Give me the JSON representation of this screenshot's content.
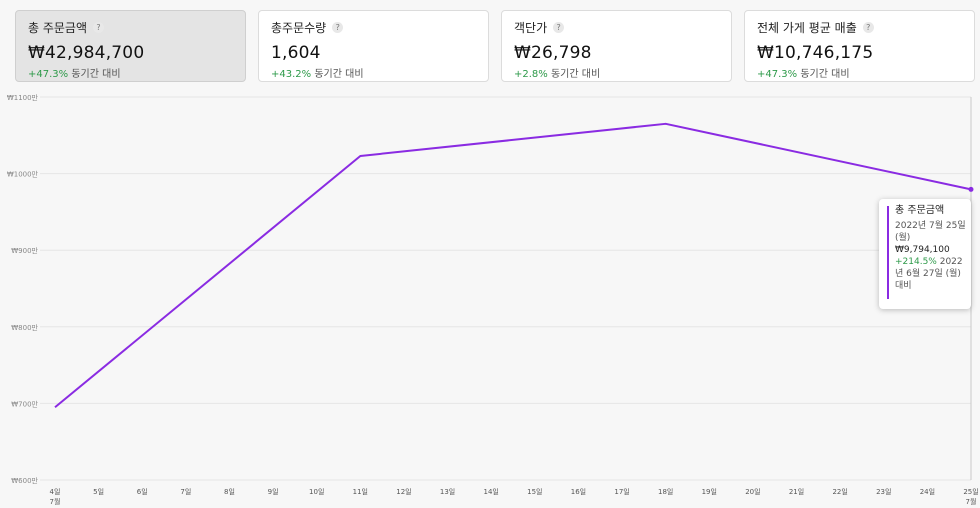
{
  "cards": [
    {
      "title": "총 주문금액",
      "value": "₩42,984,700",
      "change": "+47.3%",
      "change_suffix": "동기간 대비",
      "active": true
    },
    {
      "title": "총주문수량",
      "value": "1,604",
      "change": "+43.2%",
      "change_suffix": "동기간 대비",
      "active": false
    },
    {
      "title": "객단가",
      "value": "₩26,798",
      "change": "+2.8%",
      "change_suffix": "동기간 대비",
      "active": false
    },
    {
      "title": "전체 가게 평균 매출",
      "value": "₩10,746,175",
      "change": "+47.3%",
      "change_suffix": "동기간 대비",
      "active": false
    }
  ],
  "help_icon": "?",
  "tooltip": {
    "title": "총 주문금액",
    "date": "2022년 7월 25일 (월)",
    "value": "₩9,794,100",
    "change": "+214.5%",
    "compare": "2022년 6월 27일 (월)대비"
  },
  "colors": {
    "line": "#8a2be2",
    "positive": "#2e9a4a",
    "grid": "#e6e6e6"
  },
  "chart_data": {
    "type": "line",
    "y_tick_labels": [
      "₩600만",
      "₩700만",
      "₩800만",
      "₩900만",
      "₩1000만",
      "₩1100만"
    ],
    "y_ticks": [
      6000000,
      7000000,
      8000000,
      9000000,
      10000000,
      11000000
    ],
    "ylim": [
      6000000,
      11000000
    ],
    "x_tick_labels": [
      "4일",
      "5일",
      "6일",
      "7일",
      "8일",
      "9일",
      "10일",
      "11일",
      "12일",
      "13일",
      "14일",
      "15일",
      "16일",
      "17일",
      "18일",
      "19일",
      "20일",
      "21일",
      "22일",
      "23일",
      "24일",
      "25일"
    ],
    "x_month_labels": {
      "4일": "7월",
      "25일": "7월"
    },
    "series": [
      {
        "x": [
          "4일",
          "11일",
          "18일",
          "25일"
        ],
        "values": [
          6950000,
          10230000,
          10650000,
          9794100
        ]
      }
    ]
  }
}
